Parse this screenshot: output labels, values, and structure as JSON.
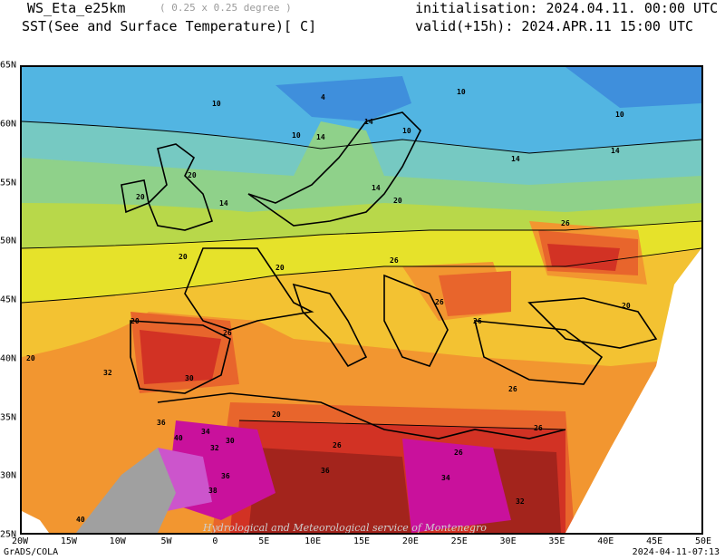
{
  "header": {
    "model": "WS_Eta_e25km",
    "resolution": "( 0.25 x 0.25 degree )",
    "field": "SST(See and Surface Temperature)[ C]",
    "initialisation": "initialisation: 2024.04.11. 00:00 UTC",
    "valid": "valid(+15h): 2024.APR.11 15:00 UTC"
  },
  "axes": {
    "x_ticks": [
      "20W",
      "15W",
      "10W",
      "5W",
      "0",
      "5E",
      "10E",
      "15E",
      "20E",
      "25E",
      "30E",
      "35E",
      "40E",
      "45E",
      "50E"
    ],
    "y_ticks": [
      "65N",
      "60N",
      "55N",
      "50N",
      "45N",
      "40N",
      "35N",
      "30N",
      "25N"
    ]
  },
  "watermark": "Hydrological and Meteorological service of Montenegro",
  "footer": {
    "left": "GrADS/COLA",
    "right": "2024-04-11-07:13"
  },
  "contour_labels": [
    "10",
    "10",
    "10",
    "10",
    "10",
    "14",
    "14",
    "14",
    "14",
    "14",
    "14",
    "20",
    "20",
    "20",
    "20",
    "20",
    "20",
    "20",
    "20",
    "20",
    "26",
    "26",
    "26",
    "26",
    "26",
    "26",
    "26",
    "26",
    "26",
    "30",
    "30",
    "32",
    "32",
    "32",
    "34",
    "34",
    "36",
    "36",
    "36",
    "38",
    "40",
    "40",
    "4"
  ],
  "colors": {
    "t4": "#7a6fc4",
    "t8": "#3f8fdc",
    "t10": "#52b5e2",
    "t12": "#76c9c2",
    "t14": "#8fd18a",
    "t16": "#b8d84a",
    "t18": "#e6e22a",
    "t20": "#f3c232",
    "t24": "#f29630",
    "t26": "#e8652c",
    "t30": "#d23224",
    "t34": "#a3241c",
    "t36": "#c9119c",
    "t38": "#cc55cc",
    "t40": "#e0a0e8",
    "land": "#a0a0a0"
  }
}
